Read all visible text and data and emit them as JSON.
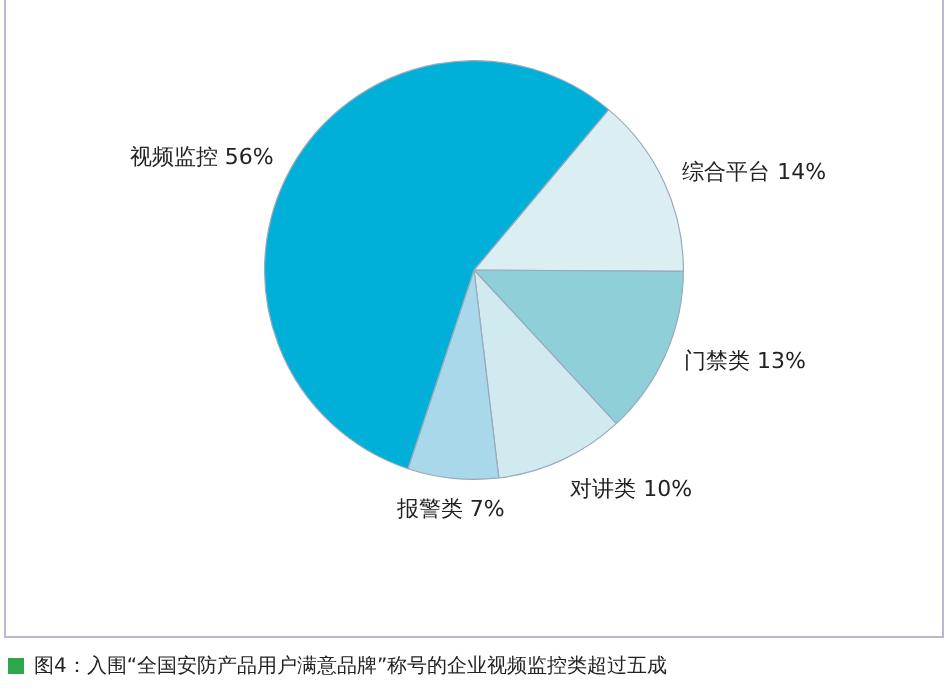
{
  "chart_data": {
    "type": "pie",
    "categories": [
      "综合平台",
      "门禁类",
      "对讲类",
      "报警类",
      "视频监控"
    ],
    "values": [
      14,
      13,
      10,
      7,
      56
    ],
    "value_labels": [
      "14%",
      "13%",
      "10%",
      "7%",
      "56%"
    ],
    "colors": [
      "#dbeff3",
      "#8ecfd8",
      "#d0eaf0",
      "#a8d8ea",
      "#00b0d8"
    ],
    "annotations": [
      "图4：入围“全国安防产品用户满意品牌”称号的企业视频监控类超过五成"
    ],
    "legend": false
  }
}
